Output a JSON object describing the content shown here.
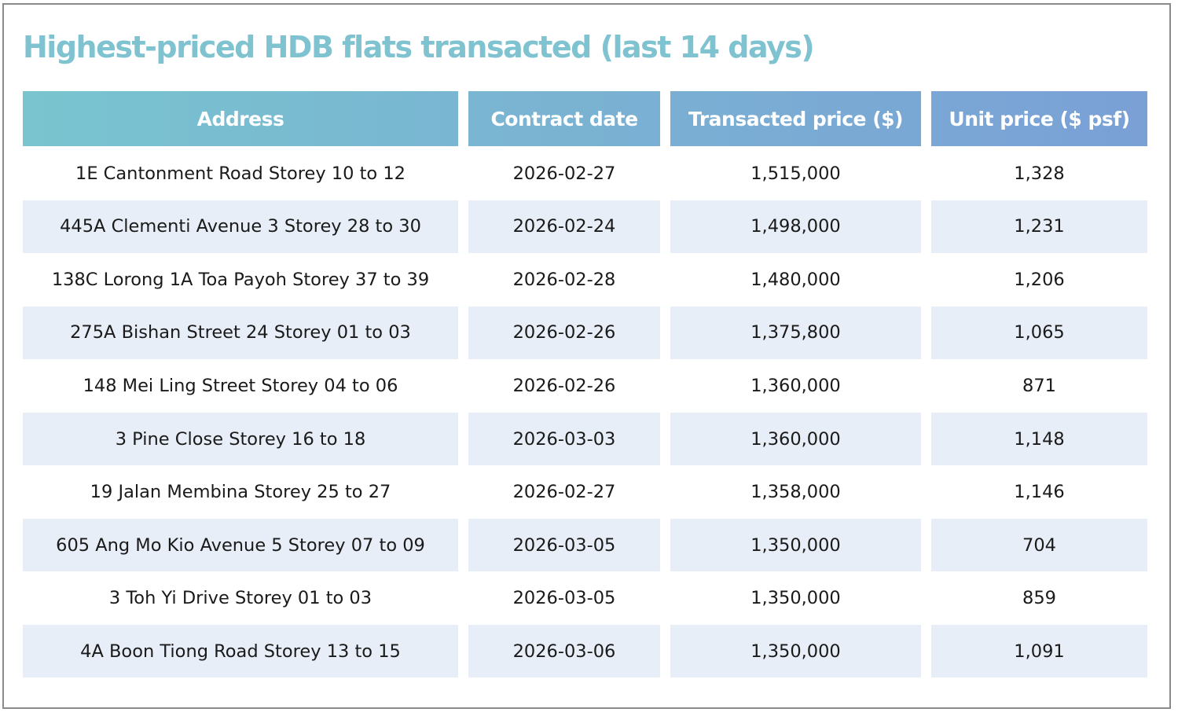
{
  "title": "Highest-priced HDB flats transacted (last 14 days)",
  "table": {
    "header": [
      "Address",
      "Contract date",
      "Transacted price ($)",
      "Unit price ($ psf)"
    ],
    "rows": [
      [
        "1E Cantonment Road Storey 10 to 12",
        "2026-02-27",
        "1,515,000",
        "1,328"
      ],
      [
        "445A Clementi Avenue 3 Storey 28 to 30",
        "2026-02-24",
        "1,498,000",
        "1,231"
      ],
      [
        "138C Lorong 1A Toa Payoh Storey 37 to 39",
        "2026-02-28",
        "1,480,000",
        "1,206"
      ],
      [
        "275A Bishan Street 24 Storey 01 to 03",
        "2026-02-26",
        "1,375,800",
        "1,065"
      ],
      [
        "148 Mei Ling Street Storey 04 to 06",
        "2026-02-26",
        "1,360,000",
        "871"
      ],
      [
        "3 Pine Close Storey 16 to 18",
        "2026-03-03",
        "1,360,000",
        "1,148"
      ],
      [
        "19 Jalan Membina Storey 25 to 27",
        "2026-02-27",
        "1,358,000",
        "1,146"
      ],
      [
        "605 Ang Mo Kio Avenue 5 Storey 07 to 09",
        "2026-03-05",
        "1,350,000",
        "704"
      ],
      [
        "3 Toh Yi Drive Storey 01 to 03",
        "2026-03-05",
        "1,350,000",
        "859"
      ],
      [
        "4A Boon Tiong Road Storey 13 to 15",
        "2026-03-06",
        "1,350,000",
        "1,091"
      ]
    ]
  }
}
